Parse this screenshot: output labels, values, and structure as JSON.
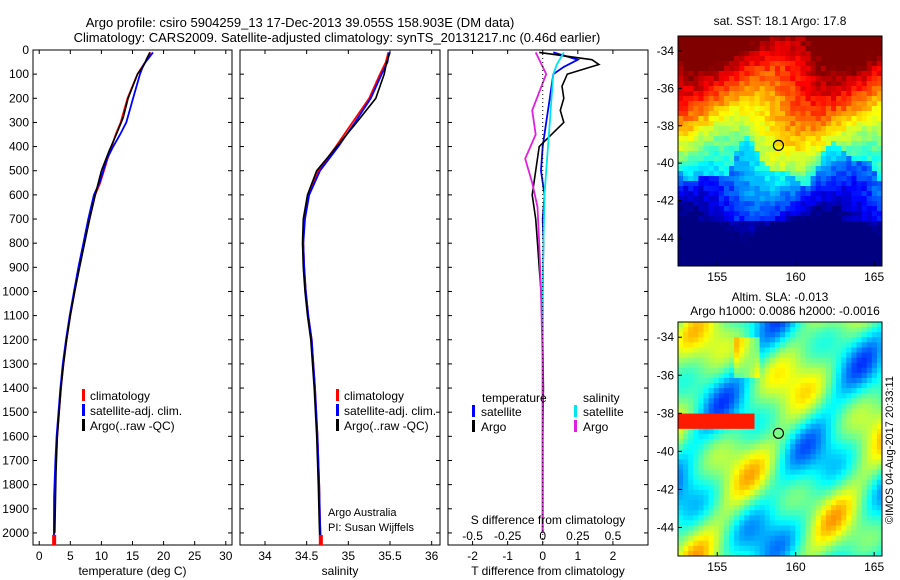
{
  "title_line1": "Argo profile: csiro 5904259_13 17-Dec-2013 39.055S 158.903E (DM data)",
  "title_line2": "Climatology: CARS2009. Satellite-adjusted climatology: synTS_20131217.nc (0.46d earlier)",
  "credit": "Argo Australia",
  "pi": "PI: Susan Wijffels",
  "watermark": "©IMOS 04-Aug-2017 20:33:11",
  "colors": {
    "clim": "#ff0000",
    "sat": "#0000ff",
    "argo": "#000000",
    "sal_sat": "#00e5ee",
    "sal_argo": "#e020e0"
  },
  "chart_data": [
    {
      "id": "temperature",
      "type": "line",
      "xlabel": "temperature (deg C)",
      "xlim": [
        -1,
        31
      ],
      "ylim": [
        2050,
        0
      ],
      "xticks": [
        0,
        5,
        10,
        15,
        20,
        25,
        30
      ],
      "yticks": [
        0,
        100,
        200,
        300,
        400,
        500,
        600,
        700,
        800,
        900,
        1000,
        1100,
        1200,
        1300,
        1400,
        1500,
        1600,
        1700,
        1800,
        1900,
        2000
      ],
      "legend": [
        "climatology",
        "satellite-adj. clim.",
        "Argo(..raw -QC)"
      ],
      "series": [
        {
          "name": "climatology",
          "color_key": "clim",
          "x": [
            17.9,
            17.3,
            15.8,
            14.2,
            13.1,
            12.3,
            11.0,
            9.8,
            9.0,
            8.1,
            7.2,
            6.4,
            5.7,
            5.0,
            4.4,
            3.9,
            3.5,
            3.2,
            2.9,
            2.7,
            2.5,
            2.4
          ],
          "y": [
            10,
            40,
            100,
            200,
            300,
            350,
            450,
            550,
            600,
            700,
            800,
            900,
            1000,
            1100,
            1200,
            1300,
            1400,
            1500,
            1600,
            1700,
            1850,
            2050
          ]
        },
        {
          "name": "satellite-adj. clim.",
          "color_key": "sat",
          "x": [
            18.3,
            17.4,
            16.8,
            16.2,
            15.1,
            14.0,
            13.0,
            11.9,
            10.9,
            9.7,
            8.8,
            7.9,
            7.1,
            6.3,
            5.6,
            4.9,
            4.3,
            3.8,
            3.4,
            3.1,
            2.8,
            2.6,
            2.4,
            2.35
          ],
          "y": [
            10,
            40,
            60,
            100,
            200,
            300,
            350,
            400,
            450,
            550,
            600,
            700,
            800,
            900,
            1000,
            1100,
            1200,
            1300,
            1400,
            1500,
            1600,
            1700,
            1850,
            2050
          ]
        },
        {
          "name": "Argo(..raw -QC)",
          "color_key": "argo",
          "x": [
            17.8,
            17.2,
            16.9,
            15.8,
            14.3,
            13.5,
            12.4,
            11.2,
            10.0,
            9.0,
            8.1,
            7.3,
            6.5,
            5.7,
            5.0,
            4.4,
            3.9,
            3.5,
            3.2,
            2.9,
            2.7,
            2.5
          ],
          "y": [
            10,
            40,
            60,
            100,
            200,
            280,
            350,
            420,
            500,
            600,
            700,
            800,
            900,
            1000,
            1100,
            1200,
            1300,
            1400,
            1500,
            1600,
            1750,
            2000
          ]
        }
      ]
    },
    {
      "id": "salinity",
      "type": "line",
      "xlabel": "salinity",
      "xlim": [
        33.7,
        36.1
      ],
      "ylim": [
        2050,
        0
      ],
      "xticks": [
        34,
        34.5,
        35,
        35.5,
        36
      ],
      "legend": [
        "climatology",
        "satellite-adj. clim.",
        "Argo(..raw -QC)"
      ],
      "series": [
        {
          "name": "climatology",
          "color_key": "clim",
          "x": [
            35.48,
            35.45,
            35.38,
            35.25,
            35.05,
            34.85,
            34.64,
            34.52,
            34.47,
            34.46,
            34.47,
            34.49,
            34.52,
            34.56,
            34.6,
            34.63,
            34.65,
            34.66,
            34.67
          ],
          "y": [
            10,
            50,
            100,
            200,
            300,
            400,
            500,
            600,
            700,
            800,
            900,
            1000,
            1100,
            1200,
            1400,
            1600,
            1800,
            1950,
            2050
          ]
        },
        {
          "name": "satellite-adj. clim.",
          "color_key": "sat",
          "x": [
            35.49,
            35.47,
            35.4,
            35.27,
            35.08,
            34.88,
            34.66,
            34.53,
            34.48,
            34.46,
            34.47,
            34.49,
            34.52,
            34.56,
            34.6,
            34.63,
            34.65,
            34.66,
            34.67
          ],
          "y": [
            10,
            50,
            100,
            200,
            300,
            400,
            500,
            600,
            700,
            800,
            900,
            1000,
            1100,
            1200,
            1400,
            1600,
            1800,
            1950,
            2050
          ]
        },
        {
          "name": "Argo(..raw -QC)",
          "color_key": "argo",
          "x": [
            35.5,
            35.46,
            35.43,
            35.33,
            35.1,
            34.86,
            34.62,
            34.51,
            34.46,
            34.45,
            34.46,
            34.48,
            34.51,
            34.55,
            34.59,
            34.62,
            34.64,
            34.65,
            34.66
          ],
          "y": [
            10,
            50,
            100,
            200,
            300,
            400,
            500,
            600,
            700,
            800,
            900,
            1000,
            1100,
            1200,
            1400,
            1600,
            1800,
            1950,
            2050
          ]
        }
      ]
    },
    {
      "id": "differences",
      "type": "line",
      "xlabel": "T difference from climatology",
      "top_label": "S difference from climatology",
      "xlim": [
        -2.7,
        3.0
      ],
      "ylim": [
        2050,
        0
      ],
      "xticks": [
        -2,
        -1,
        0,
        1,
        2
      ],
      "top_ticks": [
        "-0.5",
        "-0.25",
        "0",
        "0.25",
        "0.5"
      ],
      "top_ticks_values": [
        -2.0,
        -1.0,
        0,
        1.0,
        2.0
      ],
      "legend_titles": [
        "temperature",
        "salinity"
      ],
      "legend": [
        "satellite",
        "Argo",
        "satellite",
        "Argo"
      ],
      "series": [
        {
          "name": "temperature satellite",
          "color_key": "sat",
          "x": [
            0.3,
            1.0,
            0.6,
            0.3,
            0.2,
            0.1,
            0.0,
            -0.05,
            0.05,
            0.0,
            0.02,
            0.0,
            0.0,
            0.0,
            0.0,
            0.0,
            0.0
          ],
          "y": [
            10,
            40,
            70,
            100,
            200,
            300,
            400,
            500,
            600,
            700,
            800,
            1000,
            1200,
            1400,
            1600,
            1800,
            2000
          ]
        },
        {
          "name": "temperature Argo",
          "color_key": "argo",
          "x": [
            -0.1,
            1.4,
            1.6,
            0.7,
            0.55,
            0.6,
            0.5,
            0.6,
            -0.1,
            -0.2,
            -0.3,
            -0.2,
            -0.15,
            -0.1,
            -0.05,
            0.0,
            0.02,
            0.0,
            0.0,
            0.0
          ],
          "y": [
            10,
            40,
            60,
            100,
            150,
            200,
            250,
            300,
            400,
            500,
            600,
            700,
            800,
            900,
            1000,
            1200,
            1400,
            1600,
            1800,
            2000
          ]
        },
        {
          "name": "salinity satellite",
          "color_key": "sal_sat",
          "x": [
            0.6,
            0.4,
            0.3,
            0.25,
            0.2,
            0.15,
            0.1,
            0.05,
            0.02,
            0.0,
            0.0,
            0.0,
            0.0
          ],
          "y": [
            10,
            60,
            100,
            200,
            300,
            400,
            500,
            600,
            800,
            1000,
            1400,
            1800,
            2000
          ]
        },
        {
          "name": "salinity Argo",
          "color_key": "sal_argo",
          "x": [
            -0.2,
            0.1,
            -0.3,
            -0.2,
            -0.5,
            -0.3,
            -0.15,
            -0.1,
            -0.05,
            0.0,
            0.0,
            0.0
          ],
          "y": [
            10,
            100,
            250,
            350,
            450,
            550,
            650,
            800,
            1000,
            1300,
            1600,
            2000
          ]
        }
      ]
    },
    {
      "id": "sst-map",
      "type": "heatmap",
      "title": "sat. SST: 18.1 Argo: 17.8",
      "xticks": [
        155,
        160,
        165
      ],
      "yticks": [
        -34,
        -36,
        -38,
        -40,
        -42,
        -44
      ],
      "xlim": [
        152.5,
        165.5
      ],
      "ylim": [
        -45.5,
        -33.2
      ],
      "marker": {
        "lon": 158.9,
        "lat": -39.05
      }
    },
    {
      "id": "sla-map",
      "type": "heatmap",
      "title_line1": "Altim. SLA: -0.013",
      "title_line2": "Argo h1000: 0.0086 h2000: -0.0016",
      "xticks": [
        155,
        160,
        165
      ],
      "yticks": [
        -34,
        -36,
        -38,
        -40,
        -42,
        -44
      ],
      "xlim": [
        152.5,
        165.5
      ],
      "ylim": [
        -45.5,
        -33.2
      ],
      "marker": {
        "lon": 158.9,
        "lat": -39.05
      }
    }
  ]
}
